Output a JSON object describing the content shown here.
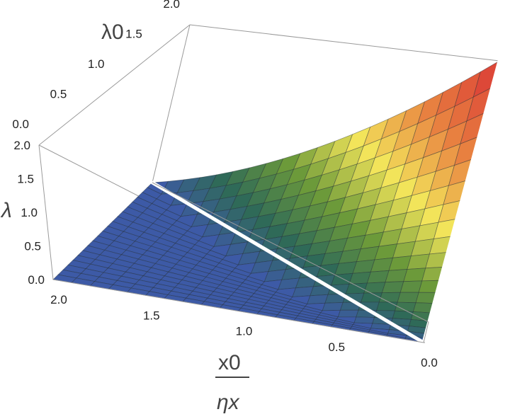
{
  "chart_data": {
    "type": "surface3d",
    "axes": {
      "x": {
        "label_numerator": "x0",
        "label_denominator": "ηx",
        "ticks": [
          "0.0",
          "0.5",
          "1.0",
          "1.5",
          "2.0"
        ],
        "range": [
          0,
          2
        ]
      },
      "y": {
        "label": "λ0",
        "ticks": [
          "0.0",
          "0.5",
          "1.0",
          "1.5",
          "2.0"
        ],
        "range": [
          0,
          2
        ]
      },
      "z": {
        "label": "λ",
        "ticks": [
          "0.0",
          "0.5",
          "1.0",
          "1.5",
          "2.0"
        ],
        "range": [
          0,
          2
        ]
      }
    },
    "surface": "λ = max(0, λ0 − x0/ηx)",
    "mesh_divisions": 20,
    "ridge_lines": [
      "λ0 = x0/ηx (λ = 0)",
      "x0/ηx = 0 (λ = λ0)"
    ],
    "colormap": [
      "#3d5aa6",
      "#2f6a58",
      "#6c9a3a",
      "#f2e45a",
      "#e88040",
      "#d93535"
    ],
    "grid": false,
    "legend": "none"
  }
}
